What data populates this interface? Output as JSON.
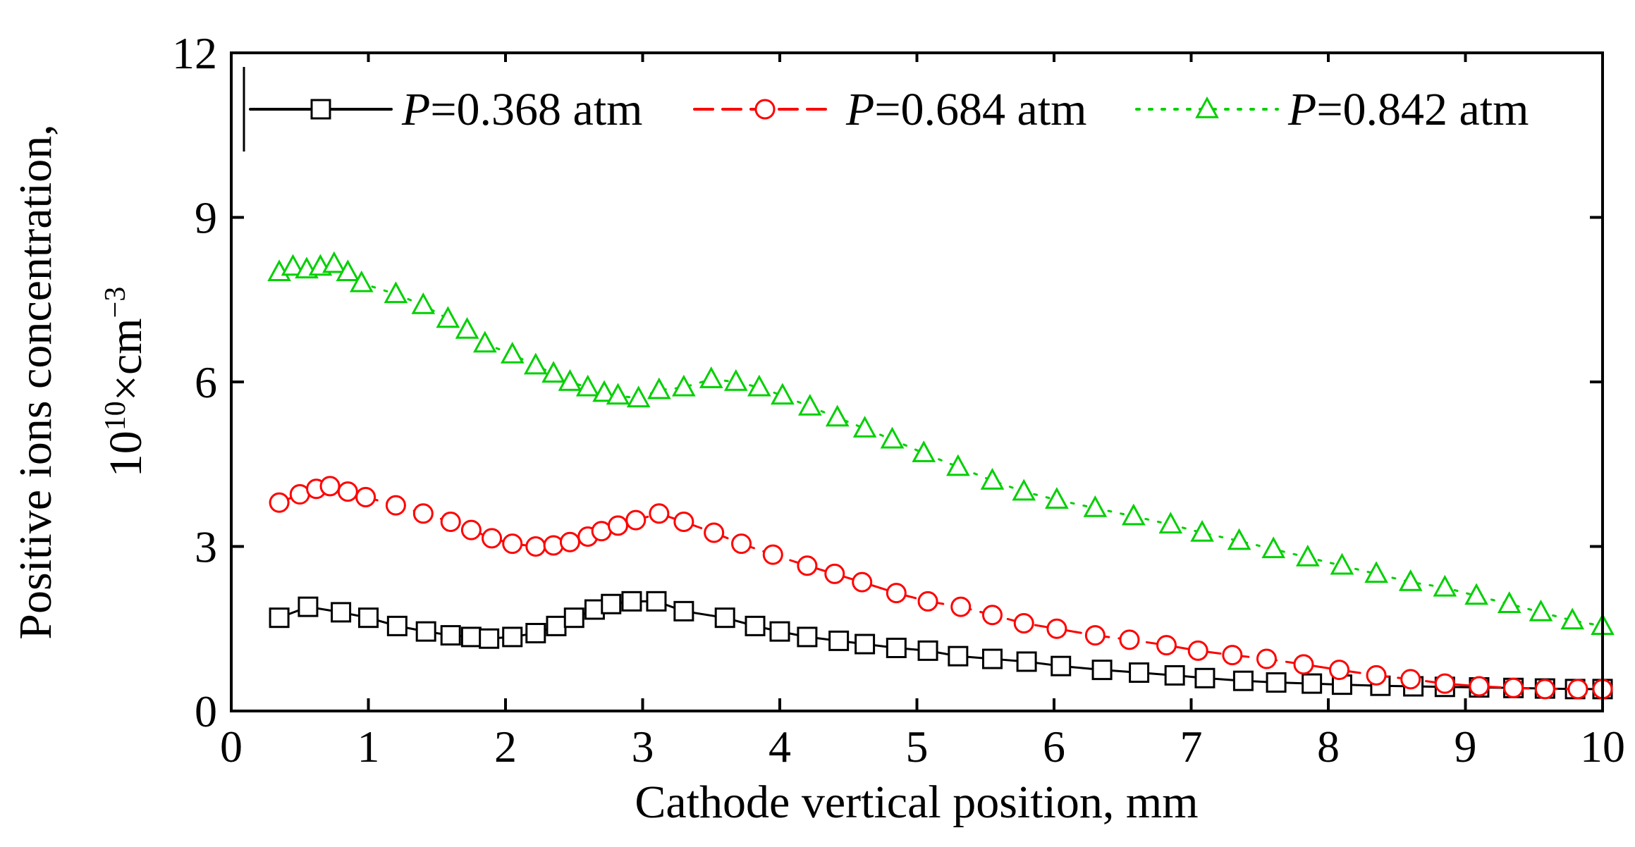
{
  "chart_data": {
    "type": "line",
    "xlabel": "Cathode vertical position, mm",
    "ylabel_line1": "Positive ions concentration,",
    "ylabel_line2_base": "10",
    "ylabel_line2_exp": "10",
    "ylabel_line2_unit": "×cm",
    "ylabel_line2_unit_exp": "−3",
    "xlim": [
      0,
      10
    ],
    "ylim": [
      0,
      12
    ],
    "x_ticks": [
      "0",
      "1",
      "2",
      "3",
      "4",
      "5",
      "6",
      "7",
      "8",
      "9",
      "10"
    ],
    "y_ticks": [
      "0",
      "3",
      "6",
      "9",
      "12"
    ],
    "series": [
      {
        "name": "P=0.368 atm",
        "legend_var": "P",
        "legend_rest": "=0.368 atm",
        "color": "#000000",
        "marker": "square",
        "line_style": "solid",
        "x": [
          0.35,
          0.56,
          0.8,
          1.0,
          1.21,
          1.42,
          1.6,
          1.75,
          1.88,
          2.05,
          2.22,
          2.37,
          2.5,
          2.65,
          2.77,
          2.92,
          3.1,
          3.3,
          3.6,
          3.82,
          4.0,
          4.2,
          4.43,
          4.62,
          4.85,
          5.08,
          5.3,
          5.55,
          5.8,
          6.05,
          6.35,
          6.62,
          6.88,
          7.1,
          7.38,
          7.62,
          7.88,
          8.1,
          8.38,
          8.62,
          8.85,
          9.1,
          9.35,
          9.58,
          9.8,
          10.0
        ],
        "y": [
          1.7,
          1.9,
          1.8,
          1.7,
          1.55,
          1.45,
          1.38,
          1.35,
          1.32,
          1.35,
          1.42,
          1.55,
          1.7,
          1.85,
          1.95,
          2.0,
          2.0,
          1.82,
          1.7,
          1.55,
          1.45,
          1.35,
          1.28,
          1.22,
          1.15,
          1.1,
          1.0,
          0.95,
          0.9,
          0.82,
          0.75,
          0.7,
          0.65,
          0.6,
          0.55,
          0.52,
          0.5,
          0.48,
          0.46,
          0.45,
          0.44,
          0.43,
          0.42,
          0.41,
          0.4,
          0.4
        ]
      },
      {
        "name": "P=0.684 atm",
        "legend_var": "P",
        "legend_rest": "=0.684 atm",
        "color": "#ff0000",
        "marker": "circle",
        "line_style": "dashed",
        "x": [
          0.35,
          0.5,
          0.62,
          0.72,
          0.85,
          0.98,
          1.2,
          1.4,
          1.6,
          1.75,
          1.9,
          2.05,
          2.22,
          2.35,
          2.47,
          2.6,
          2.7,
          2.82,
          2.95,
          3.12,
          3.3,
          3.52,
          3.72,
          3.95,
          4.2,
          4.4,
          4.6,
          4.85,
          5.08,
          5.32,
          5.55,
          5.78,
          6.02,
          6.3,
          6.55,
          6.82,
          7.05,
          7.3,
          7.55,
          7.82,
          8.08,
          8.35,
          8.6,
          8.85,
          9.1,
          9.35,
          9.58,
          9.82,
          10.0
        ],
        "y": [
          3.8,
          3.95,
          4.05,
          4.1,
          4.0,
          3.9,
          3.75,
          3.6,
          3.45,
          3.3,
          3.15,
          3.05,
          3.0,
          3.02,
          3.08,
          3.18,
          3.28,
          3.38,
          3.48,
          3.6,
          3.45,
          3.25,
          3.05,
          2.85,
          2.65,
          2.5,
          2.35,
          2.15,
          2.0,
          1.9,
          1.75,
          1.6,
          1.5,
          1.38,
          1.3,
          1.2,
          1.1,
          1.02,
          0.95,
          0.85,
          0.75,
          0.65,
          0.58,
          0.5,
          0.45,
          0.42,
          0.4,
          0.4,
          0.4
        ]
      },
      {
        "name": "P=0.842 atm",
        "legend_var": "P",
        "legend_rest": "=0.842 atm",
        "color": "#00d000",
        "marker": "triangle",
        "line_style": "dotted",
        "x": [
          0.35,
          0.45,
          0.55,
          0.65,
          0.75,
          0.85,
          0.95,
          1.2,
          1.4,
          1.58,
          1.72,
          1.85,
          2.05,
          2.22,
          2.35,
          2.47,
          2.6,
          2.72,
          2.82,
          2.97,
          3.12,
          3.3,
          3.5,
          3.68,
          3.85,
          4.02,
          4.22,
          4.42,
          4.62,
          4.82,
          5.05,
          5.3,
          5.55,
          5.78,
          6.02,
          6.3,
          6.58,
          6.85,
          7.08,
          7.35,
          7.6,
          7.85,
          8.1,
          8.35,
          8.6,
          8.85,
          9.08,
          9.32,
          9.55,
          9.78,
          10.0
        ],
        "y": [
          8.0,
          8.1,
          8.05,
          8.1,
          8.15,
          8.0,
          7.8,
          7.6,
          7.4,
          7.15,
          6.95,
          6.7,
          6.5,
          6.3,
          6.15,
          6.0,
          5.9,
          5.8,
          5.75,
          5.7,
          5.85,
          5.9,
          6.05,
          6.0,
          5.9,
          5.75,
          5.55,
          5.35,
          5.15,
          4.95,
          4.7,
          4.45,
          4.2,
          4.0,
          3.85,
          3.7,
          3.55,
          3.4,
          3.25,
          3.1,
          2.95,
          2.8,
          2.65,
          2.5,
          2.35,
          2.25,
          2.1,
          1.95,
          1.8,
          1.65,
          1.55
        ]
      }
    ]
  }
}
